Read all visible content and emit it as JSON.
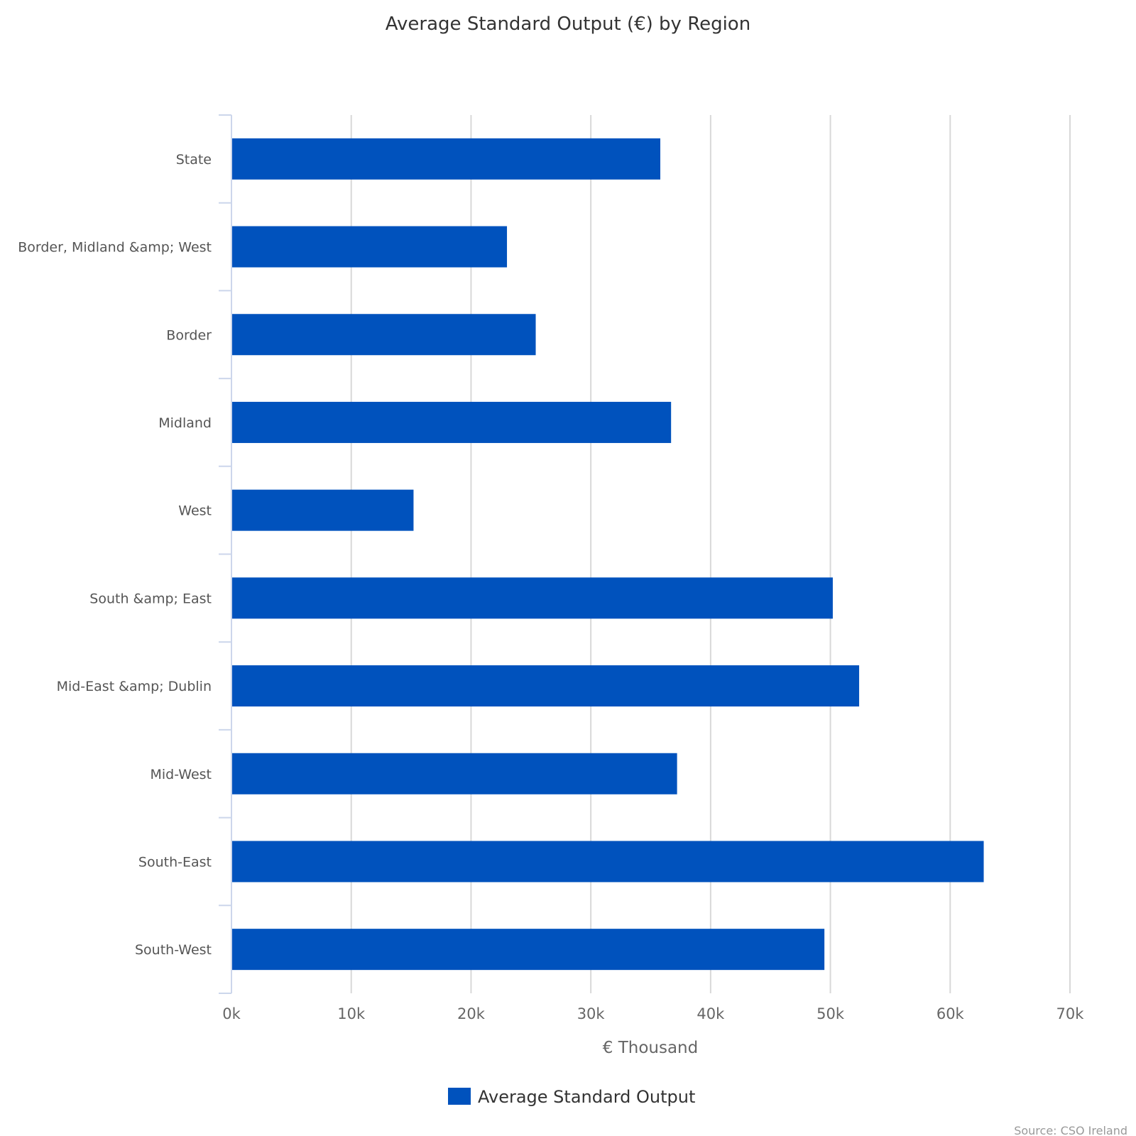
{
  "chart_data": {
    "type": "bar",
    "orientation": "horizontal",
    "title": "Average Standard Output (€) by Region",
    "xlabel": "€ Thousand",
    "ylabel": "",
    "xlim": [
      0,
      70000
    ],
    "xticks": [
      0,
      10000,
      20000,
      30000,
      40000,
      50000,
      60000,
      70000
    ],
    "xtick_labels": [
      "0k",
      "10k",
      "20k",
      "30k",
      "40k",
      "50k",
      "60k",
      "70k"
    ],
    "grid": true,
    "categories": [
      "State",
      "Border, Midland &amp; West",
      "Border",
      "Midland",
      "West",
      "South &amp; East",
      "Mid-East &amp; Dublin",
      "Mid-West",
      "South-East",
      "South-West"
    ],
    "series": [
      {
        "name": "Average Standard Output",
        "color": "#0052bd",
        "values": [
          35800,
          23000,
          25400,
          36700,
          15200,
          50200,
          52400,
          37200,
          62800,
          49500
        ]
      }
    ],
    "legend": "bottom-center",
    "credits": "Source: CSO Ireland"
  }
}
